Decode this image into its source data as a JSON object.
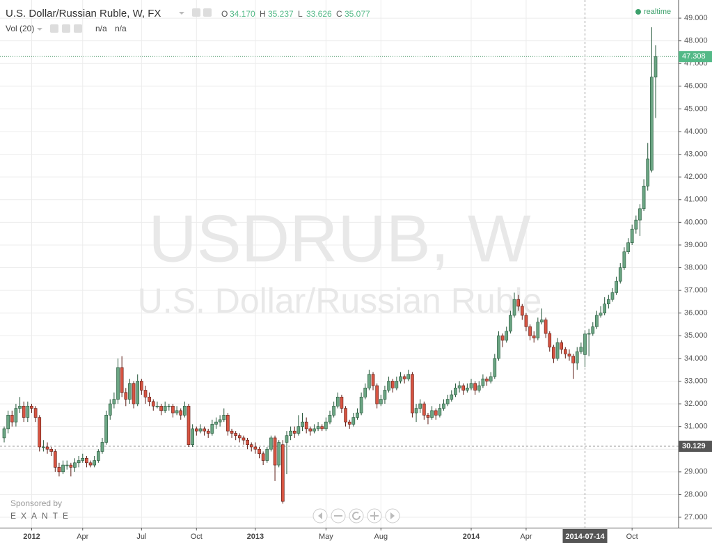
{
  "chart_data": {
    "type": "candlestick",
    "title": "U.S. Dollar/Russian Ruble, W, FX",
    "ohlc_legend": [
      {
        "key": "O",
        "value": "34.170"
      },
      {
        "key": "H",
        "value": "35.237"
      },
      {
        "key": "L",
        "value": "33.626"
      },
      {
        "key": "C",
        "value": "35.077"
      }
    ],
    "volume_legend": {
      "label": "Vol (20)",
      "values": [
        "n/a",
        "n/a"
      ]
    },
    "status": "realtime",
    "watermark": {
      "symbol": "USDRUB, W",
      "description": "U.S. Dollar/Russian Ruble"
    },
    "sponsor": {
      "caption": "Sponsored by",
      "name": "EXANTE"
    },
    "up_color": "#6ba583",
    "up_border": "#225437",
    "down_color": "#d75442",
    "down_border": "#5b1a13",
    "grid": true,
    "ylim": [
      26.54,
      49.8
    ],
    "yticks": [
      {
        "value": 27,
        "label": "27.000"
      },
      {
        "value": 28,
        "label": "28.000"
      },
      {
        "value": 29,
        "label": "29.000"
      },
      {
        "value": 30,
        "label": "30.000"
      },
      {
        "value": 31,
        "label": "31.000"
      },
      {
        "value": 32,
        "label": "32.000"
      },
      {
        "value": 33,
        "label": "33.000"
      },
      {
        "value": 34,
        "label": "34.000"
      },
      {
        "value": 35,
        "label": "35.000"
      },
      {
        "value": 36,
        "label": "36.000"
      },
      {
        "value": 37,
        "label": "37.000"
      },
      {
        "value": 38,
        "label": "38.000"
      },
      {
        "value": 39,
        "label": "39.000"
      },
      {
        "value": 40,
        "label": "40.000"
      },
      {
        "value": 41,
        "label": "41.000"
      },
      {
        "value": 42,
        "label": "42.000"
      },
      {
        "value": 43,
        "label": "43.000"
      },
      {
        "value": 44,
        "label": "44.000"
      },
      {
        "value": 45,
        "label": "45.000"
      },
      {
        "value": 46,
        "label": "46.000"
      },
      {
        "value": 47,
        "label": "47.000"
      },
      {
        "value": 48,
        "label": "48.000"
      },
      {
        "value": 49,
        "label": "49.000"
      }
    ],
    "xticks": [
      {
        "value": 7,
        "label": "2012"
      },
      {
        "value": 20,
        "label": "Apr"
      },
      {
        "value": 35,
        "label": "Jul"
      },
      {
        "value": 49,
        "label": "Oct"
      },
      {
        "value": 64,
        "label": "2013"
      },
      {
        "value": 82,
        "label": "May"
      },
      {
        "value": 96,
        "label": "Aug"
      },
      {
        "value": 119,
        "label": "2014"
      },
      {
        "value": 133,
        "label": "Apr"
      },
      {
        "value": 160,
        "label": "Oct"
      }
    ],
    "crosshair": {
      "x": 148,
      "label": "2014-07-14",
      "y": 30.129,
      "y_label": "30.129"
    },
    "last_price": {
      "value": 47.308,
      "label": "47.308"
    },
    "open": [
      30.5,
      30.9,
      31.5,
      31.2,
      31.8,
      31.9,
      31.4,
      31.9,
      31.8,
      31.4,
      30.1,
      30.1,
      30.0,
      29.9,
      29.2,
      29.0,
      29.3,
      29.3,
      29.2,
      29.4,
      29.5,
      29.6,
      29.4,
      29.3,
      29.5,
      29.9,
      30.3,
      31.5,
      32.0,
      32.2,
      33.6,
      32.5,
      32.2,
      32.9,
      32.0,
      33.0,
      32.6,
      32.3,
      32.1,
      31.9,
      31.9,
      31.7,
      31.9,
      31.9,
      31.6,
      31.7,
      31.5,
      31.9,
      30.2,
      30.9,
      30.8,
      30.9,
      30.8,
      30.7,
      31.1,
      31.2,
      31.3,
      31.5,
      30.8,
      30.7,
      30.6,
      30.5,
      30.4,
      30.2,
      30.1,
      30.0,
      29.8,
      29.5,
      30.0,
      30.5,
      29.3,
      30.2,
      30.3,
      30.6,
      30.8,
      30.7,
      31.0,
      31.2,
      30.9,
      30.8,
      30.9,
      31.0,
      30.9,
      31.2,
      31.5,
      31.9,
      32.3,
      31.8,
      31.2,
      31.1,
      31.4,
      31.6,
      32.3,
      32.7,
      33.3,
      32.8,
      32.0,
      32.2,
      32.6,
      33.0,
      32.7,
      33.0,
      33.2,
      33.1,
      33.3,
      31.6,
      31.8,
      32.0,
      31.5,
      31.4,
      31.7,
      31.5,
      31.8,
      32.0,
      32.2,
      32.4,
      32.7,
      32.8,
      32.6,
      32.7,
      32.9,
      32.6,
      32.8,
      33.1,
      33.0,
      33.2,
      34.0,
      35.0,
      34.8,
      35.2,
      35.9,
      36.6,
      36.3,
      35.9,
      35.4,
      35.0,
      34.9,
      35.6,
      35.7,
      35.1,
      34.5,
      34.0,
      34.7,
      34.4,
      34.2,
      34.1,
      33.8,
      34.3,
      34.17,
      35.077,
      35.1,
      35.4,
      35.9,
      36.0,
      36.4,
      36.6,
      36.9,
      37.4,
      38.0,
      38.7,
      39.1,
      39.7,
      40.1,
      40.6,
      41.6,
      42.3,
      46.4
    ],
    "high": [
      31.0,
      31.7,
      31.7,
      32.0,
      32.3,
      32.1,
      32.1,
      32.0,
      31.9,
      31.5,
      30.4,
      30.3,
      30.1,
      30.0,
      29.4,
      29.5,
      29.5,
      29.4,
      29.6,
      29.7,
      29.8,
      29.7,
      29.5,
      29.7,
      30.0,
      30.5,
      31.7,
      32.2,
      32.5,
      34.0,
      34.1,
      32.7,
      33.1,
      33.0,
      33.3,
      33.1,
      32.8,
      32.5,
      32.2,
      32.1,
      32.0,
      32.1,
      32.0,
      32.0,
      31.9,
      31.8,
      32.1,
      32.0,
      31.1,
      31.0,
      31.1,
      31.0,
      30.9,
      31.3,
      31.4,
      31.5,
      31.8,
      31.6,
      30.9,
      30.8,
      30.7,
      30.6,
      30.5,
      30.3,
      30.3,
      30.1,
      29.9,
      30.1,
      30.6,
      30.6,
      30.4,
      30.4,
      30.8,
      31.0,
      31.0,
      31.5,
      31.6,
      31.4,
      31.0,
      31.1,
      31.2,
      31.1,
      31.4,
      31.7,
      32.1,
      32.5,
      32.4,
      31.9,
      31.3,
      31.6,
      31.8,
      32.5,
      32.9,
      33.5,
      33.4,
      32.9,
      32.4,
      32.8,
      33.2,
      33.1,
      33.2,
      33.4,
      33.3,
      33.5,
      33.4,
      32.0,
      32.2,
      32.1,
      31.6,
      31.9,
      31.8,
      32.0,
      32.2,
      32.4,
      32.6,
      32.9,
      33.0,
      32.9,
      32.9,
      33.1,
      33.0,
      33.0,
      33.3,
      33.2,
      33.4,
      34.2,
      35.2,
      35.1,
      35.4,
      36.1,
      36.9,
      36.8,
      36.4,
      36.0,
      35.5,
      35.2,
      35.8,
      36.2,
      35.8,
      35.2,
      34.6,
      34.9,
      34.8,
      34.5,
      34.4,
      34.2,
      34.5,
      34.7,
      35.237,
      35.3,
      35.6,
      36.1,
      36.3,
      36.7,
      36.8,
      37.1,
      37.6,
      38.2,
      38.9,
      39.3,
      39.9,
      40.3,
      40.8,
      41.9,
      43.5,
      48.6,
      47.8
    ],
    "low": [
      30.3,
      30.7,
      31.0,
      31.0,
      31.6,
      31.2,
      31.2,
      31.6,
      31.2,
      29.9,
      29.9,
      29.8,
      29.7,
      29.0,
      28.8,
      28.9,
      29.1,
      28.8,
      29.0,
      29.2,
      29.4,
      29.2,
      29.2,
      29.2,
      29.4,
      29.8,
      30.2,
      31.3,
      31.8,
      32.0,
      32.3,
      31.9,
      32.0,
      31.8,
      31.9,
      32.4,
      32.0,
      31.9,
      31.7,
      31.8,
      31.5,
      31.6,
      31.7,
      31.4,
      31.5,
      31.3,
      31.4,
      30.1,
      30.1,
      30.6,
      30.7,
      30.6,
      30.5,
      30.6,
      30.9,
      31.0,
      31.2,
      30.6,
      30.5,
      30.4,
      30.3,
      30.2,
      30.0,
      29.9,
      29.8,
      29.6,
      29.3,
      29.4,
      29.9,
      28.6,
      29.2,
      27.6,
      28.9,
      30.4,
      30.5,
      30.6,
      30.8,
      30.7,
      30.6,
      30.7,
      30.8,
      30.8,
      30.8,
      31.1,
      31.4,
      31.8,
      31.6,
      31.0,
      30.9,
      31.0,
      31.3,
      31.5,
      32.2,
      32.6,
      32.6,
      31.8,
      31.9,
      32.0,
      32.5,
      32.5,
      32.6,
      32.9,
      32.9,
      33.0,
      31.4,
      31.2,
      31.6,
      31.3,
      31.1,
      31.3,
      31.3,
      31.4,
      31.7,
      31.9,
      32.1,
      32.3,
      32.5,
      32.4,
      32.5,
      32.6,
      32.4,
      32.5,
      32.7,
      32.8,
      32.9,
      33.1,
      33.9,
      34.5,
      34.7,
      35.1,
      35.8,
      36.1,
      35.7,
      35.2,
      34.8,
      34.7,
      34.8,
      35.5,
      34.9,
      34.3,
      33.8,
      33.9,
      34.2,
      34.0,
      33.9,
      33.1,
      33.5,
      34.2,
      33.626,
      34.1,
      35.0,
      35.3,
      35.8,
      35.9,
      36.2,
      36.5,
      36.8,
      37.3,
      37.9,
      38.6,
      39.0,
      39.5,
      39.4,
      40.5,
      41.4,
      42.2,
      44.6
    ],
    "close": [
      30.9,
      31.5,
      31.2,
      31.8,
      31.9,
      31.4,
      31.9,
      31.8,
      31.4,
      30.1,
      30.1,
      30.0,
      29.9,
      29.2,
      29.0,
      29.3,
      29.3,
      29.2,
      29.4,
      29.5,
      29.6,
      29.4,
      29.3,
      29.5,
      29.9,
      30.3,
      31.5,
      32.0,
      32.2,
      33.6,
      32.5,
      32.2,
      32.9,
      32.0,
      33.0,
      32.6,
      32.3,
      32.1,
      31.9,
      31.9,
      31.7,
      31.9,
      31.9,
      31.6,
      31.7,
      31.5,
      31.9,
      30.2,
      30.9,
      30.8,
      30.9,
      30.8,
      30.7,
      31.1,
      31.2,
      31.3,
      31.5,
      30.8,
      30.7,
      30.6,
      30.5,
      30.4,
      30.2,
      30.1,
      30.0,
      29.8,
      29.5,
      30.0,
      30.5,
      29.3,
      30.3,
      27.7,
      30.6,
      30.8,
      30.7,
      31.0,
      31.2,
      30.9,
      30.8,
      30.9,
      31.0,
      30.9,
      31.2,
      31.5,
      31.9,
      32.3,
      31.8,
      31.2,
      31.1,
      31.4,
      31.6,
      32.3,
      32.7,
      33.3,
      32.8,
      32.0,
      32.2,
      32.6,
      33.0,
      32.7,
      33.0,
      33.2,
      33.1,
      33.3,
      31.6,
      31.8,
      32.0,
      31.5,
      31.4,
      31.7,
      31.5,
      31.8,
      32.0,
      32.2,
      32.4,
      32.7,
      32.8,
      32.6,
      32.7,
      32.9,
      32.6,
      32.8,
      33.1,
      33.0,
      33.2,
      34.0,
      35.0,
      34.8,
      35.2,
      35.9,
      36.6,
      36.3,
      35.9,
      35.4,
      35.0,
      34.9,
      35.6,
      35.7,
      35.1,
      34.5,
      34.0,
      34.7,
      34.4,
      34.2,
      34.1,
      33.8,
      34.3,
      34.5,
      35.077,
      35.1,
      35.4,
      35.9,
      36.0,
      36.4,
      36.6,
      36.9,
      37.4,
      38.0,
      38.7,
      39.1,
      39.7,
      40.1,
      40.6,
      41.6,
      42.8,
      46.4,
      47.308
    ]
  }
}
